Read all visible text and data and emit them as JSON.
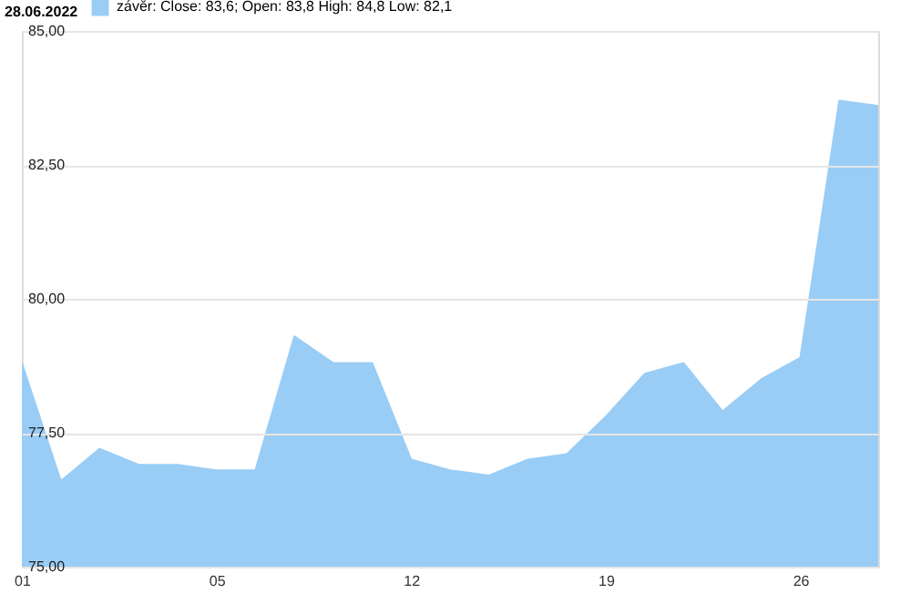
{
  "chart_data": {
    "type": "area",
    "title": "28.06.2022",
    "categories": [
      "01",
      null,
      null,
      null,
      null,
      "05",
      null,
      null,
      null,
      null,
      "12",
      null,
      null,
      null,
      null,
      "19",
      null,
      null,
      null,
      null,
      "26",
      null,
      null
    ],
    "series": [
      {
        "name": "závěr: Close: 83,6; Open: 83,8 High: 84,8 Low: 82,1",
        "color": "#99cdf6",
        "values": [
          78.8,
          76.6,
          77.2,
          76.9,
          76.9,
          76.8,
          76.8,
          79.3,
          78.8,
          78.8,
          77.0,
          76.8,
          76.7,
          77.0,
          77.1,
          77.8,
          78.6,
          78.8,
          77.9,
          78.5,
          78.9,
          83.7,
          83.6
        ]
      }
    ],
    "ylim": [
      75,
      85
    ],
    "yticks": [
      {
        "value": 75,
        "label": "75,00"
      },
      {
        "value": 77.5,
        "label": "77,50"
      },
      {
        "value": 80,
        "label": "80,00"
      },
      {
        "value": 82.5,
        "label": "82,50"
      },
      {
        "value": 85,
        "label": "85,00"
      }
    ],
    "grid": "y",
    "legend": "top left"
  }
}
